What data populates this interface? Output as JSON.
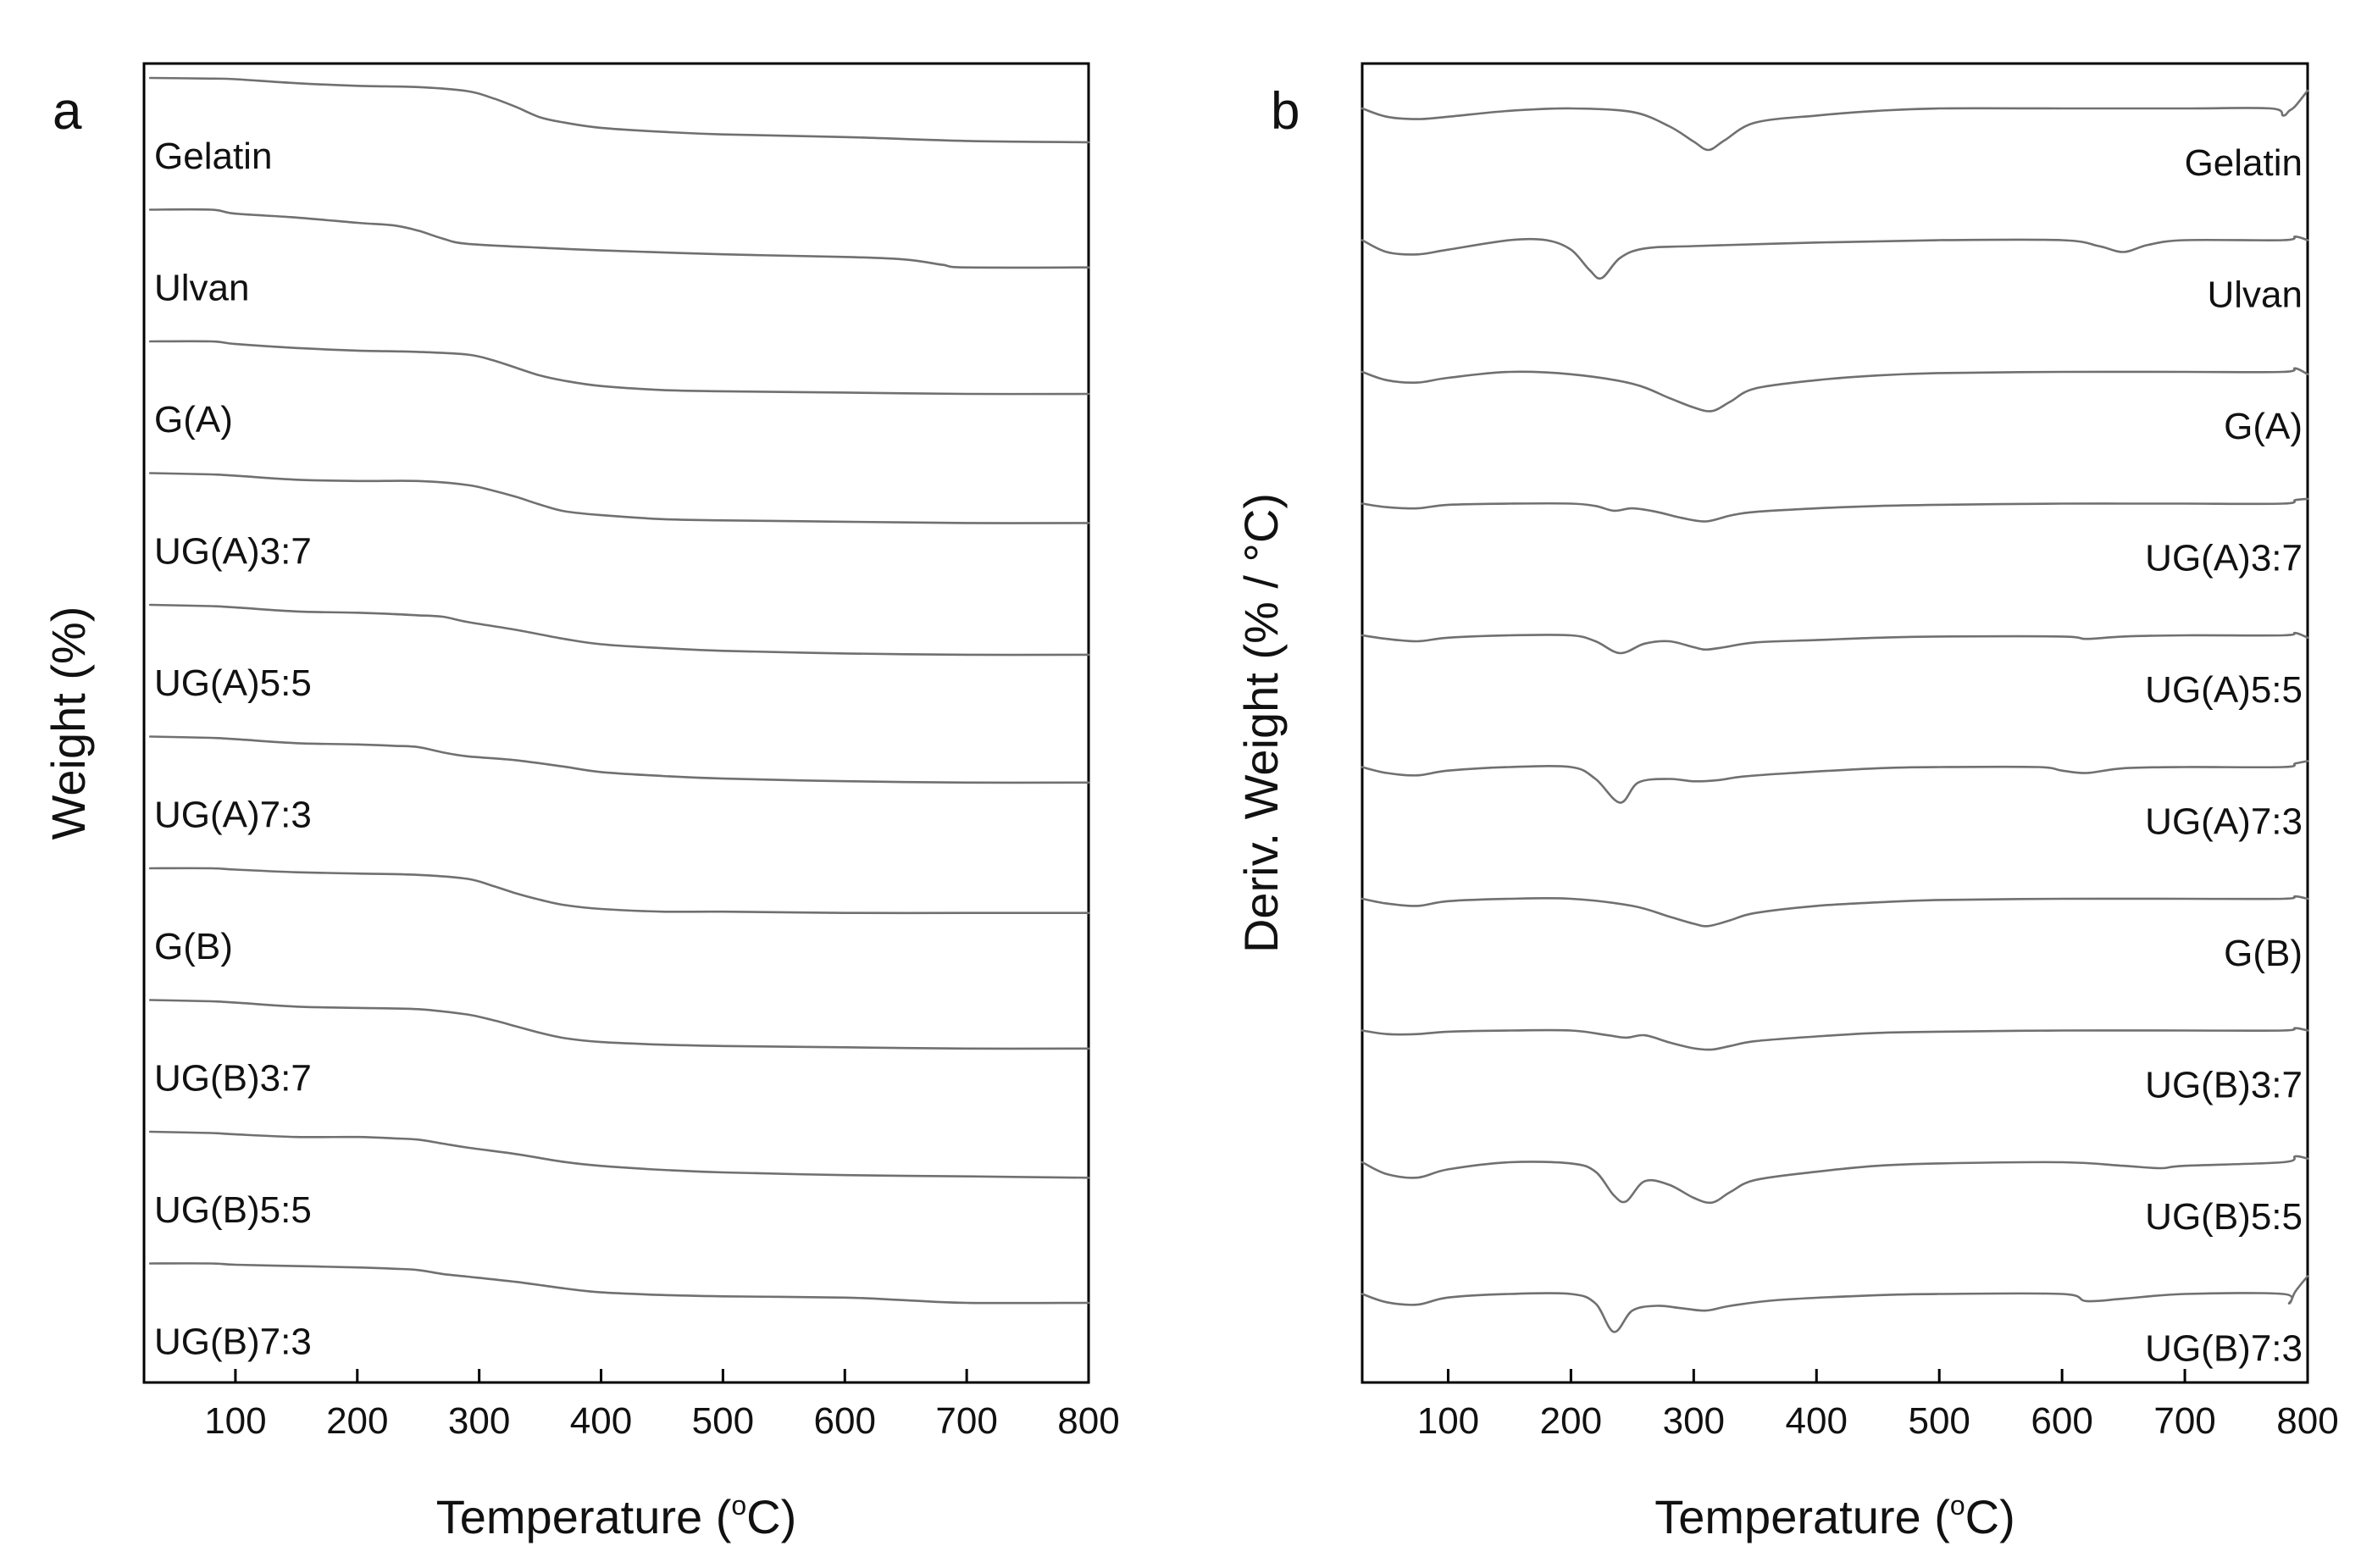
{
  "chart_data": [
    {
      "panel": "a",
      "type": "line",
      "title": "",
      "xlabel": "Temperature (°C)",
      "xlabel_main": "Temperature (",
      "xlabel_sup": "o",
      "xlabel_end": "C)",
      "ylabel": "Weight (%)",
      "xlim": [
        25,
        800
      ],
      "xticks": [
        100,
        200,
        300,
        400,
        500,
        600,
        700,
        800
      ],
      "grid": false,
      "note": "Curves offset vertically; values are relative weight (%) per sample",
      "series": [
        {
          "name": "Gelatin",
          "x": [
            30,
            80,
            100,
            150,
            200,
            250,
            290,
            310,
            330,
            350,
            370,
            400,
            450,
            500,
            600,
            700,
            800
          ],
          "y": [
            100,
            99.5,
            99,
            96,
            94,
            93,
            90,
            85,
            78,
            70,
            66,
            62,
            59,
            57,
            55,
            52,
            51
          ]
        },
        {
          "name": "Ulvan",
          "x": [
            30,
            80,
            100,
            150,
            200,
            230,
            250,
            270,
            290,
            350,
            400,
            500,
            600,
            650,
            680,
            700,
            800
          ],
          "y": [
            100,
            100,
            97,
            94,
            90,
            88,
            84,
            78,
            74,
            71,
            69,
            66,
            64,
            62,
            58,
            56,
            56
          ]
        },
        {
          "name": "G(A)",
          "x": [
            30,
            80,
            100,
            150,
            200,
            250,
            290,
            310,
            330,
            350,
            370,
            400,
            450,
            500,
            600,
            700,
            800
          ],
          "y": [
            100,
            100,
            98,
            95,
            93,
            92,
            90,
            86,
            80,
            74,
            70,
            66,
            63,
            62,
            61,
            60,
            60
          ]
        },
        {
          "name": "UG(A)3:7",
          "x": [
            30,
            80,
            100,
            150,
            200,
            250,
            290,
            310,
            330,
            350,
            370,
            400,
            450,
            500,
            600,
            700,
            800
          ],
          "y": [
            100,
            99,
            98,
            95,
            94,
            94,
            91,
            87,
            82,
            76,
            71,
            68,
            65,
            64,
            63,
            62,
            62
          ]
        },
        {
          "name": "UG(A)5:5",
          "x": [
            30,
            80,
            100,
            150,
            200,
            230,
            250,
            270,
            290,
            330,
            370,
            400,
            450,
            500,
            600,
            700,
            800
          ],
          "y": [
            100,
            99,
            98,
            95,
            94,
            93,
            92,
            91,
            87,
            81,
            74,
            70,
            67,
            65,
            63,
            62,
            62
          ]
        },
        {
          "name": "UG(A)7:3",
          "x": [
            30,
            80,
            100,
            150,
            200,
            230,
            250,
            270,
            290,
            330,
            370,
            400,
            450,
            500,
            600,
            700,
            800
          ],
          "y": [
            100,
            99,
            98,
            95,
            94,
            93,
            92,
            88,
            85,
            82,
            77,
            73,
            70,
            68,
            66,
            65,
            65
          ]
        },
        {
          "name": "G(B)",
          "x": [
            30,
            80,
            100,
            150,
            200,
            250,
            290,
            310,
            330,
            350,
            370,
            400,
            450,
            500,
            600,
            700,
            800
          ],
          "y": [
            100,
            100,
            99,
            97,
            96,
            95,
            92,
            87,
            81,
            76,
            72,
            69,
            67,
            67,
            66,
            66,
            66
          ]
        },
        {
          "name": "UG(B)3:7",
          "x": [
            30,
            80,
            100,
            150,
            200,
            250,
            290,
            310,
            330,
            350,
            370,
            400,
            450,
            500,
            600,
            700,
            800
          ],
          "y": [
            100,
            99,
            98,
            95,
            94,
            93,
            89,
            85,
            80,
            75,
            71,
            68,
            66,
            65,
            64,
            63,
            63
          ]
        },
        {
          "name": "UG(B)5:5",
          "x": [
            30,
            80,
            100,
            150,
            200,
            230,
            250,
            270,
            290,
            330,
            370,
            400,
            450,
            500,
            600,
            700,
            800
          ],
          "y": [
            100,
            99,
            98,
            96,
            96,
            95,
            94,
            91,
            88,
            83,
            77,
            74,
            71,
            69,
            67,
            66,
            65
          ]
        },
        {
          "name": "UG(B)7:3",
          "x": [
            30,
            80,
            100,
            150,
            200,
            230,
            250,
            270,
            290,
            330,
            370,
            400,
            450,
            500,
            600,
            650,
            700,
            800
          ],
          "y": [
            100,
            100,
            99,
            98,
            97,
            96,
            95,
            92,
            90,
            86,
            81,
            78,
            76,
            75,
            74,
            72,
            70,
            70
          ]
        }
      ]
    },
    {
      "panel": "b",
      "type": "line",
      "title": "",
      "xlabel": "Temperature (°C)",
      "xlabel_main": "Temperature (",
      "xlabel_sup": "o",
      "xlabel_end": "C)",
      "ylabel": "Deriv. Weight (% / °C)",
      "xlim": [
        30,
        800
      ],
      "xticks": [
        100,
        200,
        300,
        400,
        500,
        600,
        700,
        800
      ],
      "grid": false,
      "note": "DTG curves offset vertically; values relative (0 = baseline, negative = mass-loss peak)",
      "series": [
        {
          "name": "Gelatin",
          "x": [
            30,
            50,
            75,
            100,
            150,
            200,
            250,
            280,
            300,
            312,
            325,
            350,
            400,
            450,
            500,
            600,
            700,
            770,
            780,
            785,
            790,
            800
          ],
          "y": [
            0,
            -0.7,
            -0.9,
            -0.7,
            -0.2,
            0,
            -0.3,
            -1.5,
            -2.8,
            -3.5,
            -2.7,
            -1.2,
            -0.6,
            -0.2,
            0,
            0,
            0,
            0,
            -0.6,
            -0.2,
            0.2,
            1.5
          ]
        },
        {
          "name": "Ulvan",
          "x": [
            30,
            50,
            75,
            100,
            150,
            180,
            200,
            215,
            225,
            240,
            260,
            300,
            400,
            500,
            600,
            630,
            650,
            670,
            700,
            780,
            790,
            800
          ],
          "y": [
            0,
            -1.0,
            -1.2,
            -0.8,
            0,
            0,
            -0.8,
            -2.5,
            -3.2,
            -1.5,
            -0.7,
            -0.5,
            -0.2,
            0,
            0,
            -0.5,
            -1.0,
            -0.4,
            0,
            0,
            0.3,
            0
          ]
        },
        {
          "name": "G(A)",
          "x": [
            30,
            50,
            75,
            100,
            150,
            200,
            250,
            280,
            300,
            315,
            330,
            350,
            400,
            450,
            500,
            600,
            700,
            780,
            790,
            800
          ],
          "y": [
            0,
            -0.7,
            -0.9,
            -0.5,
            0,
            -0.2,
            -1.0,
            -2.2,
            -3.0,
            -3.3,
            -2.5,
            -1.4,
            -0.7,
            -0.3,
            -0.1,
            0,
            0,
            0,
            0.3,
            -0.2
          ]
        },
        {
          "name": "UG(A)3:7",
          "x": [
            30,
            50,
            75,
            100,
            150,
            200,
            220,
            235,
            250,
            270,
            290,
            310,
            330,
            350,
            400,
            450,
            500,
            600,
            650,
            700,
            780,
            790,
            800
          ],
          "y": [
            0,
            -0.3,
            -0.4,
            -0.1,
            0,
            0,
            -0.2,
            -0.6,
            -0.4,
            -0.7,
            -1.2,
            -1.5,
            -1.0,
            -0.7,
            -0.4,
            -0.2,
            -0.1,
            0,
            0,
            0,
            0,
            0.3,
            0.4
          ]
        },
        {
          "name": "UG(A)5:5",
          "x": [
            30,
            50,
            75,
            100,
            150,
            200,
            220,
            240,
            260,
            280,
            300,
            310,
            325,
            350,
            400,
            450,
            500,
            600,
            620,
            650,
            700,
            780,
            790,
            800
          ],
          "y": [
            0,
            -0.3,
            -0.5,
            -0.2,
            0,
            0,
            -0.5,
            -1.5,
            -0.7,
            -0.5,
            -1.0,
            -1.2,
            -1.0,
            -0.6,
            -0.4,
            -0.2,
            -0.1,
            -0.1,
            -0.3,
            -0.1,
            0,
            0,
            0.2,
            -0.2
          ]
        },
        {
          "name": "UG(A)7:3",
          "x": [
            30,
            50,
            75,
            100,
            150,
            200,
            220,
            240,
            255,
            280,
            300,
            320,
            340,
            380,
            450,
            500,
            580,
            600,
            620,
            650,
            700,
            780,
            790,
            800
          ],
          "y": [
            0,
            -0.5,
            -0.7,
            -0.3,
            0,
            0,
            -1.0,
            -3.0,
            -1.3,
            -1.0,
            -1.2,
            -1.1,
            -0.8,
            -0.5,
            -0.1,
            0,
            0,
            -0.3,
            -0.5,
            -0.1,
            0,
            0,
            0.3,
            0.5
          ]
        },
        {
          "name": "G(B)",
          "x": [
            30,
            50,
            75,
            100,
            150,
            200,
            250,
            280,
            300,
            312,
            330,
            350,
            400,
            450,
            500,
            600,
            700,
            780,
            790,
            800
          ],
          "y": [
            0,
            -0.4,
            -0.6,
            -0.2,
            0,
            0,
            -0.6,
            -1.5,
            -2.1,
            -2.3,
            -1.8,
            -1.2,
            -0.6,
            -0.3,
            -0.1,
            0,
            0,
            0,
            0.2,
            0
          ]
        },
        {
          "name": "UG(B)3:7",
          "x": [
            30,
            50,
            75,
            100,
            150,
            200,
            230,
            245,
            260,
            280,
            300,
            315,
            330,
            350,
            400,
            450,
            500,
            600,
            700,
            780,
            790,
            800
          ],
          "y": [
            0,
            -0.3,
            -0.3,
            -0.1,
            0,
            0,
            -0.4,
            -0.6,
            -0.4,
            -1.0,
            -1.5,
            -1.6,
            -1.3,
            -0.9,
            -0.5,
            -0.2,
            -0.1,
            0,
            0,
            0,
            0.2,
            0
          ]
        },
        {
          "name": "UG(B)5:5",
          "x": [
            30,
            50,
            75,
            100,
            150,
            200,
            220,
            235,
            245,
            260,
            280,
            300,
            315,
            330,
            350,
            400,
            450,
            500,
            600,
            650,
            680,
            700,
            780,
            790,
            800
          ],
          "y": [
            0,
            -1.0,
            -1.3,
            -0.6,
            0,
            -0.1,
            -0.8,
            -2.8,
            -3.3,
            -1.6,
            -1.9,
            -3.0,
            -3.4,
            -2.5,
            -1.5,
            -0.8,
            -0.3,
            -0.1,
            0,
            -0.3,
            -0.5,
            -0.3,
            0,
            0.5,
            0.3
          ]
        },
        {
          "name": "UG(B)7:3",
          "x": [
            30,
            50,
            75,
            100,
            150,
            200,
            220,
            235,
            250,
            270,
            290,
            310,
            330,
            370,
            450,
            500,
            600,
            620,
            650,
            700,
            780,
            785,
            790,
            800
          ],
          "y": [
            0,
            -0.7,
            -0.9,
            -0.3,
            0,
            0,
            -0.8,
            -3.2,
            -1.4,
            -1.0,
            -1.2,
            -1.4,
            -1.0,
            -0.5,
            -0.1,
            0,
            0,
            -0.6,
            -0.4,
            0,
            0,
            -0.8,
            0.2,
            1.5
          ]
        }
      ]
    }
  ]
}
